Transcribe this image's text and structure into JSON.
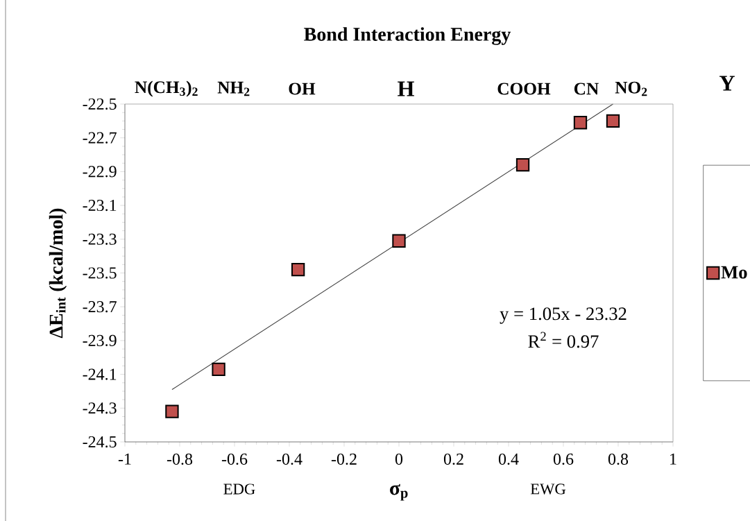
{
  "chart_data": {
    "type": "scatter",
    "title": "Bond Interaction Energy",
    "xlabel": "σ$_{p}$",
    "ylabel": "ΔE$_{int}$  (kcal/mol)",
    "legend_title": "Y",
    "x": [
      -0.828,
      -0.658,
      -0.368,
      0.0,
      0.452,
      0.662,
      0.781
    ],
    "series": [
      {
        "name": "Mo",
        "color": "#c0504d",
        "marker": "square",
        "values": [
          -24.32,
          -24.07,
          -23.48,
          -23.31,
          -22.86,
          -22.61,
          -22.6
        ]
      },
      {
        "type": "line",
        "color": "#404040",
        "x": [
          -0.828,
          0.781
        ],
        "values": [
          -24.19,
          -22.5
        ]
      }
    ],
    "xlim": [
      -1,
      1
    ],
    "xticks": [
      -1,
      -0.8,
      -0.6,
      -0.4,
      -0.2,
      0,
      0.2,
      0.4,
      0.6,
      0.8,
      1
    ],
    "ylim": [
      -24.5,
      -22.5
    ],
    "yticks": [
      -24.5,
      -24.3,
      -24.1,
      -23.9,
      -23.7,
      -23.5,
      -23.3,
      -23.1,
      -22.9,
      -22.7,
      -22.5
    ],
    "annotations": [
      "y = 1.05x - 23.32",
      "R$^{2}$ = 0.97",
      "EDG",
      "EWG",
      "N(CH$_{3}$)$_{2}$",
      "NH$_{2}$",
      "OH",
      "H",
      "COOH",
      "CN",
      "NO$_{2}$"
    ],
    "legend": "right",
    "grid": false
  }
}
